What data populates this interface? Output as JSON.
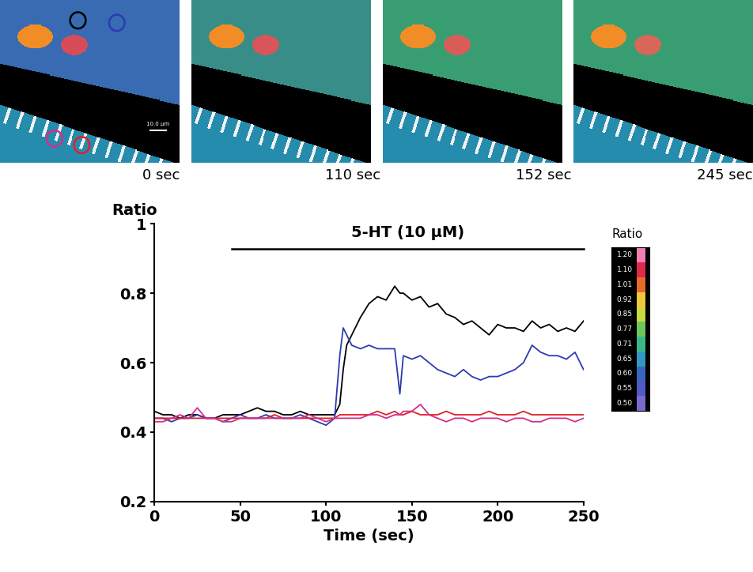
{
  "chart_data": {
    "type": "line",
    "x_label": "Time (sec)",
    "y_label": "Ratio",
    "xlim": [
      0,
      250
    ],
    "xticks": [
      0,
      50,
      100,
      150,
      200,
      250
    ],
    "ylim": [
      0.2,
      1
    ],
    "yticks": [
      0.2,
      0.4,
      0.6,
      0.8,
      1
    ],
    "x": [
      0,
      5,
      10,
      15,
      20,
      25,
      30,
      35,
      40,
      45,
      50,
      55,
      60,
      65,
      70,
      75,
      80,
      85,
      90,
      95,
      100,
      105,
      108,
      110,
      112,
      115,
      120,
      125,
      130,
      135,
      140,
      143,
      145,
      150,
      155,
      160,
      165,
      170,
      175,
      180,
      185,
      190,
      195,
      200,
      205,
      210,
      215,
      220,
      225,
      230,
      235,
      240,
      245,
      250
    ],
    "series": [
      {
        "color": "#000000",
        "values": [
          0.46,
          0.45,
          0.45,
          0.44,
          0.45,
          0.45,
          0.44,
          0.44,
          0.45,
          0.45,
          0.45,
          0.46,
          0.47,
          0.46,
          0.46,
          0.45,
          0.45,
          0.46,
          0.45,
          0.45,
          0.45,
          0.45,
          0.48,
          0.58,
          0.65,
          0.68,
          0.73,
          0.77,
          0.79,
          0.78,
          0.82,
          0.8,
          0.8,
          0.78,
          0.79,
          0.76,
          0.77,
          0.74,
          0.73,
          0.71,
          0.72,
          0.7,
          0.68,
          0.71,
          0.7,
          0.7,
          0.69,
          0.72,
          0.7,
          0.71,
          0.69,
          0.7,
          0.69,
          0.72
        ]
      },
      {
        "color": "#2b3bb0",
        "values": [
          0.44,
          0.44,
          0.43,
          0.44,
          0.44,
          0.45,
          0.44,
          0.44,
          0.43,
          0.44,
          0.45,
          0.44,
          0.44,
          0.45,
          0.44,
          0.44,
          0.44,
          0.45,
          0.44,
          0.43,
          0.42,
          0.44,
          0.62,
          0.7,
          0.68,
          0.65,
          0.64,
          0.65,
          0.64,
          0.64,
          0.64,
          0.51,
          0.62,
          0.61,
          0.62,
          0.6,
          0.58,
          0.57,
          0.56,
          0.58,
          0.56,
          0.55,
          0.56,
          0.56,
          0.57,
          0.58,
          0.6,
          0.65,
          0.63,
          0.62,
          0.62,
          0.61,
          0.63,
          0.58
        ]
      },
      {
        "color": "#e0202a",
        "values": [
          0.44,
          0.44,
          0.44,
          0.44,
          0.44,
          0.44,
          0.44,
          0.44,
          0.44,
          0.44,
          0.44,
          0.44,
          0.44,
          0.44,
          0.45,
          0.44,
          0.44,
          0.44,
          0.44,
          0.44,
          0.44,
          0.44,
          0.45,
          0.45,
          0.45,
          0.45,
          0.45,
          0.45,
          0.46,
          0.45,
          0.46,
          0.45,
          0.45,
          0.46,
          0.45,
          0.45,
          0.45,
          0.46,
          0.45,
          0.45,
          0.45,
          0.45,
          0.46,
          0.45,
          0.45,
          0.45,
          0.46,
          0.45,
          0.45,
          0.45,
          0.45,
          0.45,
          0.45,
          0.45
        ]
      },
      {
        "color": "#d0308a",
        "values": [
          0.43,
          0.43,
          0.44,
          0.45,
          0.44,
          0.47,
          0.44,
          0.44,
          0.43,
          0.43,
          0.44,
          0.44,
          0.44,
          0.44,
          0.44,
          0.44,
          0.44,
          0.44,
          0.45,
          0.44,
          0.43,
          0.44,
          0.44,
          0.44,
          0.44,
          0.44,
          0.44,
          0.45,
          0.45,
          0.44,
          0.45,
          0.45,
          0.46,
          0.46,
          0.48,
          0.45,
          0.44,
          0.43,
          0.44,
          0.44,
          0.43,
          0.44,
          0.44,
          0.44,
          0.43,
          0.44,
          0.44,
          0.43,
          0.43,
          0.44,
          0.44,
          0.44,
          0.43,
          0.44
        ]
      }
    ],
    "annotations": [
      {
        "text": "5-HT (10 µM)",
        "x": [
          45,
          250
        ]
      }
    ],
    "color_bar": {
      "title": "Ratio",
      "ticks": [
        {
          "value": 1.2,
          "label": "1.20"
        },
        {
          "value": 1.1,
          "label": "1.10"
        },
        {
          "value": 1.01,
          "label": "1.01"
        },
        {
          "value": 0.92,
          "label": "0.92"
        },
        {
          "value": 0.85,
          "label": "0.85"
        },
        {
          "value": 0.77,
          "label": "0.77"
        },
        {
          "value": 0.71,
          "label": "0.71"
        },
        {
          "value": 0.65,
          "label": "0.65"
        },
        {
          "value": 0.6,
          "label": "0.60"
        },
        {
          "value": 0.55,
          "label": "0.55"
        },
        {
          "value": 0.5,
          "label": "0.50"
        }
      ]
    },
    "images": [
      {
        "label": "0 sec",
        "colors": [
          "#000000",
          "#2b3bb0",
          "#d0308a",
          "#e0202a"
        ]
      },
      {
        "label": "110 sec"
      },
      {
        "label": "152 sec"
      },
      {
        "label": "245 sec"
      }
    ],
    "scale_bar": "10.0 µm"
  }
}
